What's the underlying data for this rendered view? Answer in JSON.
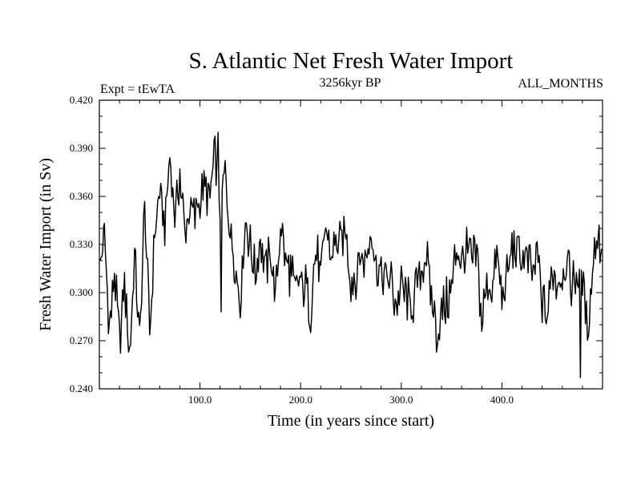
{
  "chart_data": {
    "type": "line",
    "title": "S. Atlantic Net Fresh Water Import",
    "left_label": "Expt = tEwTA",
    "center_label": "3256kyr BP",
    "right_label": "ALL_MONTHS",
    "xlabel": "Time (in years since start)",
    "ylabel": "Fresh Water Import (in Sv)",
    "xlim": [
      0,
      500
    ],
    "ylim": [
      0.24,
      0.42
    ],
    "x_ticks": [
      100,
      200,
      300,
      400
    ],
    "x_tick_labels": [
      "100.0",
      "200.0",
      "300.0",
      "400.0"
    ],
    "y_ticks": [
      0.24,
      0.27,
      0.3,
      0.33,
      0.36,
      0.39,
      0.42
    ],
    "y_tick_labels": [
      "0.240",
      "0.270",
      "0.300",
      "0.330",
      "0.360",
      "0.390",
      "0.420"
    ],
    "grid": false,
    "series": [
      {
        "name": "Fresh Water Import",
        "x": [
          1,
          5,
          10,
          15,
          20,
          25,
          30,
          35,
          40,
          45,
          50,
          55,
          60,
          65,
          70,
          75,
          80,
          85,
          90,
          95,
          100,
          105,
          110,
          115,
          120,
          125,
          130,
          135,
          140,
          145,
          150,
          155,
          160,
          165,
          170,
          175,
          180,
          185,
          190,
          195,
          200,
          205,
          210,
          215,
          220,
          225,
          230,
          235,
          240,
          245,
          250,
          255,
          260,
          265,
          270,
          275,
          280,
          285,
          290,
          295,
          300,
          305,
          310,
          315,
          320,
          325,
          330,
          335,
          340,
          345,
          350,
          355,
          360,
          365,
          370,
          375,
          380,
          385,
          390,
          395,
          400,
          405,
          410,
          415,
          420,
          425,
          430,
          435,
          440,
          445,
          450,
          455,
          460,
          465,
          470,
          475,
          480,
          485,
          490,
          495,
          499
        ],
        "values": [
          0.318,
          0.336,
          0.276,
          0.31,
          0.271,
          0.305,
          0.263,
          0.322,
          0.271,
          0.353,
          0.275,
          0.336,
          0.361,
          0.34,
          0.384,
          0.346,
          0.373,
          0.336,
          0.352,
          0.348,
          0.36,
          0.362,
          0.359,
          0.39,
          0.354,
          0.375,
          0.341,
          0.318,
          0.295,
          0.345,
          0.33,
          0.31,
          0.333,
          0.314,
          0.325,
          0.296,
          0.342,
          0.32,
          0.313,
          0.302,
          0.305,
          0.304,
          0.289,
          0.328,
          0.308,
          0.341,
          0.32,
          0.333,
          0.329,
          0.34,
          0.306,
          0.311,
          0.325,
          0.32,
          0.339,
          0.315,
          0.311,
          0.31,
          0.306,
          0.291,
          0.301,
          0.296,
          0.29,
          0.301,
          0.314,
          0.325,
          0.297,
          0.276,
          0.285,
          0.295,
          0.302,
          0.33,
          0.317,
          0.324,
          0.32,
          0.325,
          0.284,
          0.304,
          0.303,
          0.325,
          0.296,
          0.308,
          0.327,
          0.327,
          0.322,
          0.321,
          0.311,
          0.324,
          0.295,
          0.284,
          0.315,
          0.307,
          0.314,
          0.318,
          0.305,
          0.311,
          0.31,
          0.274,
          0.315,
          0.34,
          0.327
        ],
        "color": "#000000"
      }
    ],
    "annotations": [
      {
        "x": 118,
        "y": 0.4
      },
      {
        "x": 121,
        "y": 0.288
      },
      {
        "x": 478,
        "y": 0.247
      }
    ]
  }
}
